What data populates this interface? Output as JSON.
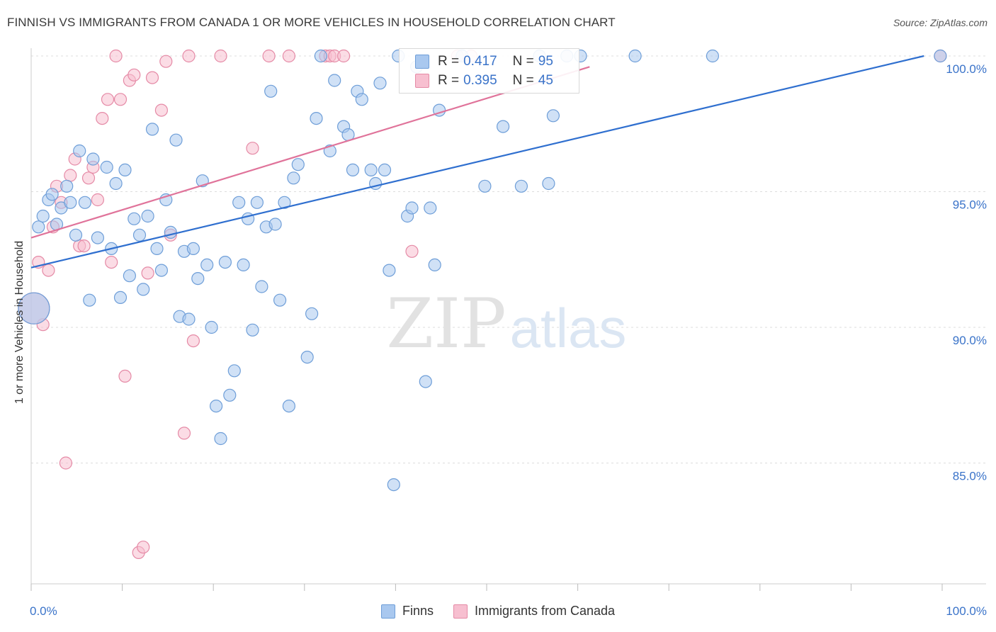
{
  "title": "FINNISH VS IMMIGRANTS FROM CANADA 1 OR MORE VEHICLES IN HOUSEHOLD CORRELATION CHART",
  "source": "Source: ZipAtlas.com",
  "watermark": {
    "zip": "ZIP",
    "atlas": "atlas"
  },
  "legend_top": [
    {
      "r_label": "R =",
      "r_value": "0.417",
      "n_label": "N =",
      "n_value": "95"
    },
    {
      "r_label": "R =",
      "r_value": "0.395",
      "n_label": "N =",
      "n_value": "45"
    }
  ],
  "bottom_legend": [
    "Finns",
    "Immigrants from Canada"
  ],
  "colors": {
    "finns_fill": "#a9c8ef",
    "finns_stroke": "#6e9ed8",
    "finns_line": "#2f6fcf",
    "canada_fill": "#f7bfd0",
    "canada_stroke": "#e58aa6",
    "canada_line": "#e0739a",
    "axis_label": "#3a73c9",
    "grid": "#dcdcdc"
  },
  "chart_data": {
    "type": "scatter",
    "title": "FINNISH VS IMMIGRANTS FROM CANADA 1 OR MORE VEHICLES IN HOUSEHOLD CORRELATION CHART",
    "xlabel": "",
    "ylabel": "1 or more Vehicles in Household",
    "xlim": [
      0,
      100
    ],
    "ylim": [
      80.0,
      101.0
    ],
    "x_tick_labels": [
      "0.0%",
      "100.0%"
    ],
    "y_ticks": [
      85.0,
      90.0,
      95.0,
      100.0
    ],
    "y_tick_labels": [
      "85.0%",
      "90.0%",
      "95.0%",
      "100.0%"
    ],
    "grid": true,
    "legend_position": "top-center",
    "series": [
      {
        "name": "Finns",
        "r": 0.417,
        "n": 95,
        "trend": {
          "x": [
            0,
            98
          ],
          "y": [
            92.2,
            100.0
          ]
        },
        "points": [
          [
            0.8,
            93.7
          ],
          [
            1.3,
            94.1
          ],
          [
            1.9,
            94.7
          ],
          [
            2.3,
            94.9
          ],
          [
            2.8,
            93.8
          ],
          [
            3.3,
            94.4
          ],
          [
            3.9,
            95.2
          ],
          [
            4.3,
            94.6
          ],
          [
            4.9,
            93.4
          ],
          [
            5.3,
            96.5
          ],
          [
            5.9,
            94.6
          ],
          [
            6.4,
            91.0
          ],
          [
            6.8,
            96.2
          ],
          [
            7.3,
            93.3
          ],
          [
            8.3,
            95.9
          ],
          [
            8.8,
            92.9
          ],
          [
            9.3,
            95.3
          ],
          [
            9.8,
            91.1
          ],
          [
            10.3,
            95.8
          ],
          [
            10.8,
            91.9
          ],
          [
            11.3,
            94.0
          ],
          [
            11.9,
            93.4
          ],
          [
            12.3,
            91.4
          ],
          [
            12.8,
            94.1
          ],
          [
            13.3,
            97.3
          ],
          [
            13.8,
            92.9
          ],
          [
            14.3,
            92.1
          ],
          [
            14.8,
            94.7
          ],
          [
            15.3,
            93.5
          ],
          [
            15.9,
            96.9
          ],
          [
            16.3,
            90.4
          ],
          [
            16.8,
            92.8
          ],
          [
            17.3,
            90.3
          ],
          [
            17.8,
            92.9
          ],
          [
            18.3,
            91.8
          ],
          [
            18.8,
            95.4
          ],
          [
            19.3,
            92.3
          ],
          [
            19.8,
            90.0
          ],
          [
            20.3,
            87.1
          ],
          [
            20.8,
            85.9
          ],
          [
            21.3,
            92.4
          ],
          [
            21.8,
            87.5
          ],
          [
            22.3,
            88.4
          ],
          [
            22.8,
            94.6
          ],
          [
            23.3,
            92.3
          ],
          [
            23.8,
            94.0
          ],
          [
            24.3,
            89.9
          ],
          [
            24.8,
            94.6
          ],
          [
            25.3,
            91.5
          ],
          [
            25.8,
            93.7
          ],
          [
            26.3,
            98.7
          ],
          [
            26.8,
            93.8
          ],
          [
            27.3,
            91.0
          ],
          [
            27.8,
            94.6
          ],
          [
            28.3,
            87.1
          ],
          [
            28.8,
            95.5
          ],
          [
            29.3,
            96.0
          ],
          [
            30.3,
            88.9
          ],
          [
            30.8,
            90.5
          ],
          [
            31.3,
            97.7
          ],
          [
            31.8,
            100.0
          ],
          [
            32.8,
            96.5
          ],
          [
            33.3,
            99.1
          ],
          [
            34.3,
            97.4
          ],
          [
            34.8,
            97.1
          ],
          [
            35.3,
            95.8
          ],
          [
            35.8,
            98.7
          ],
          [
            36.3,
            98.4
          ],
          [
            37.3,
            95.8
          ],
          [
            37.8,
            95.3
          ],
          [
            38.3,
            99.0
          ],
          [
            38.8,
            95.8
          ],
          [
            39.3,
            92.1
          ],
          [
            39.8,
            84.2
          ],
          [
            40.3,
            100.0
          ],
          [
            41.3,
            94.1
          ],
          [
            41.8,
            94.4
          ],
          [
            42.3,
            99.6
          ],
          [
            43.3,
            88.0
          ],
          [
            43.8,
            94.4
          ],
          [
            44.3,
            92.3
          ],
          [
            44.8,
            98.0
          ],
          [
            47.3,
            100.0
          ],
          [
            49.8,
            95.2
          ],
          [
            51.8,
            97.4
          ],
          [
            53.8,
            95.2
          ],
          [
            55.8,
            100.0
          ],
          [
            56.8,
            95.3
          ],
          [
            57.3,
            97.8
          ],
          [
            58.8,
            100.0
          ],
          [
            60.3,
            100.0
          ],
          [
            66.3,
            100.0
          ],
          [
            74.8,
            100.0
          ],
          [
            99.8,
            100.0
          ],
          [
            0.3,
            90.7
          ]
        ]
      },
      {
        "name": "Immigrants from Canada",
        "r": 0.395,
        "n": 45,
        "trend": {
          "x": [
            0,
            61.3
          ],
          "y": [
            93.3,
            99.6
          ]
        },
        "points": [
          [
            0.8,
            92.4
          ],
          [
            1.3,
            90.1
          ],
          [
            1.9,
            92.1
          ],
          [
            2.4,
            93.7
          ],
          [
            2.8,
            95.2
          ],
          [
            3.3,
            94.6
          ],
          [
            3.8,
            85.0
          ],
          [
            4.3,
            95.6
          ],
          [
            4.8,
            96.2
          ],
          [
            5.3,
            93.0
          ],
          [
            5.8,
            93.0
          ],
          [
            6.3,
            95.5
          ],
          [
            6.8,
            95.9
          ],
          [
            7.3,
            94.7
          ],
          [
            7.8,
            97.7
          ],
          [
            8.4,
            98.4
          ],
          [
            8.8,
            92.4
          ],
          [
            9.3,
            100.0
          ],
          [
            9.8,
            98.4
          ],
          [
            10.3,
            88.2
          ],
          [
            10.8,
            99.1
          ],
          [
            11.3,
            99.3
          ],
          [
            11.8,
            81.7
          ],
          [
            12.3,
            81.9
          ],
          [
            12.8,
            92.0
          ],
          [
            13.3,
            99.2
          ],
          [
            14.3,
            98.0
          ],
          [
            14.8,
            99.8
          ],
          [
            15.3,
            93.4
          ],
          [
            16.8,
            86.1
          ],
          [
            17.3,
            100.0
          ],
          [
            17.8,
            89.5
          ],
          [
            20.8,
            100.0
          ],
          [
            24.3,
            96.6
          ],
          [
            26.1,
            100.0
          ],
          [
            28.3,
            100.0
          ],
          [
            32.3,
            100.0
          ],
          [
            32.8,
            100.0
          ],
          [
            33.3,
            100.0
          ],
          [
            34.3,
            100.0
          ],
          [
            41.8,
            92.8
          ],
          [
            46.8,
            100.0
          ],
          [
            48.3,
            100.0
          ],
          [
            99.8,
            100.0
          ],
          [
            0.3,
            90.7
          ]
        ]
      }
    ]
  }
}
